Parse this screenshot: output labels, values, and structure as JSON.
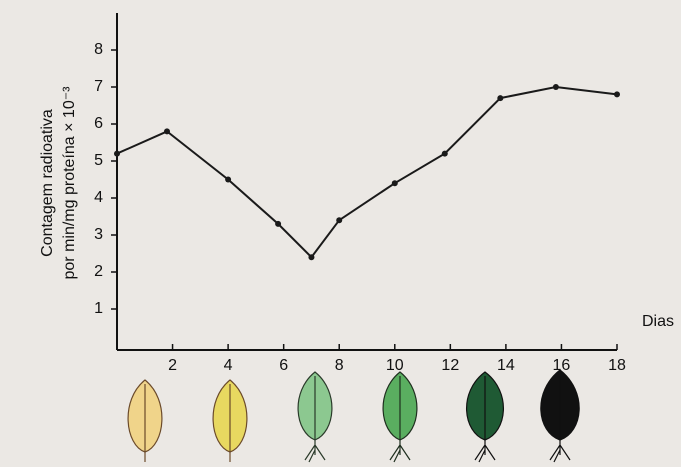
{
  "chart_data": {
    "type": "line",
    "y_label": [
      "Contagem radioativa",
      "por min/mg proteína × 10⁻³"
    ],
    "x_label": "Dias",
    "x": [
      0,
      1.8,
      4,
      5.8,
      7,
      8,
      10,
      11.8,
      13.8,
      15.8,
      18
    ],
    "series": [
      {
        "color": "#1a1a1a",
        "values": [
          5.2,
          5.8,
          4.5,
          3.3,
          2.4,
          3.4,
          4.4,
          5.2,
          6.7,
          7.0,
          6.8
        ]
      }
    ],
    "xlim": [
      0,
      18
    ],
    "ylim": [
      0,
      9
    ],
    "xticks": [
      2,
      4,
      6,
      8,
      10,
      12,
      14,
      16,
      18
    ],
    "yticks": [
      1,
      2,
      3,
      4,
      5,
      6,
      7,
      8
    ]
  }
}
